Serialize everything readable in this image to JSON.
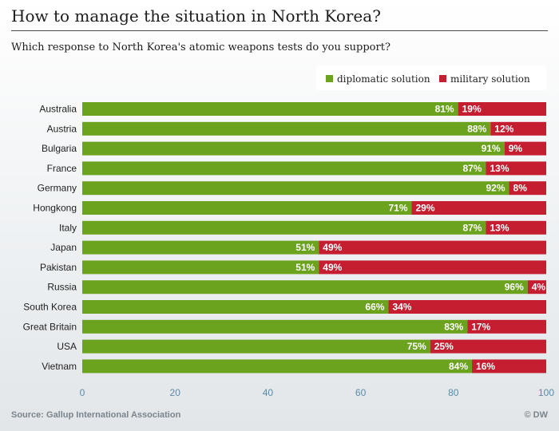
{
  "header": {
    "title": "How to manage the situation in North Korea?",
    "subtitle": "Which response to North Korea's atomic weapons tests do you support?"
  },
  "footer": {
    "source": "Source: Gallup International Association",
    "credit": "© DW"
  },
  "colors": {
    "diplomatic": "#6ba31e",
    "military": "#c41e30",
    "tick_text": "#5a8aa8"
  },
  "chart_data": {
    "type": "bar",
    "orientation": "horizontal",
    "stacked": true,
    "title": "How to manage the situation in North Korea?",
    "subtitle": "Which response to North Korea's atomic weapons tests do you support?",
    "categories": [
      "Australia",
      "Austria",
      "Bulgaria",
      "France",
      "Germany",
      "Hongkong",
      "Italy",
      "Japan",
      "Pakistan",
      "Russia",
      "South Korea",
      "Great Britain",
      "USA",
      "Vietnam"
    ],
    "series": [
      {
        "name": "diplomatic solution",
        "values": [
          81,
          88,
          91,
          87,
          92,
          71,
          87,
          51,
          51,
          96,
          66,
          83,
          75,
          84
        ],
        "labels": [
          "81%",
          "88%",
          "91%",
          "87%",
          "92%",
          "71%",
          "87%",
          "51%",
          "51%",
          "96%",
          "66%",
          "83%",
          "75%",
          "84%"
        ]
      },
      {
        "name": "military solution",
        "values": [
          19,
          12,
          9,
          13,
          8,
          29,
          13,
          49,
          49,
          4,
          34,
          17,
          25,
          16
        ],
        "labels": [
          "19%",
          "12%",
          "9%",
          "13%",
          "8%",
          "29%",
          "13%",
          "49%",
          "49%",
          "4%",
          "34%",
          "17%",
          "25%",
          "16%"
        ]
      }
    ],
    "xlim": [
      0,
      100
    ],
    "xticks": [
      0,
      20,
      40,
      60,
      80,
      100
    ],
    "xtick_labels": [
      "0",
      "20",
      "40",
      "60",
      "80",
      "100"
    ],
    "legend_position": "top-right",
    "grid": false
  }
}
